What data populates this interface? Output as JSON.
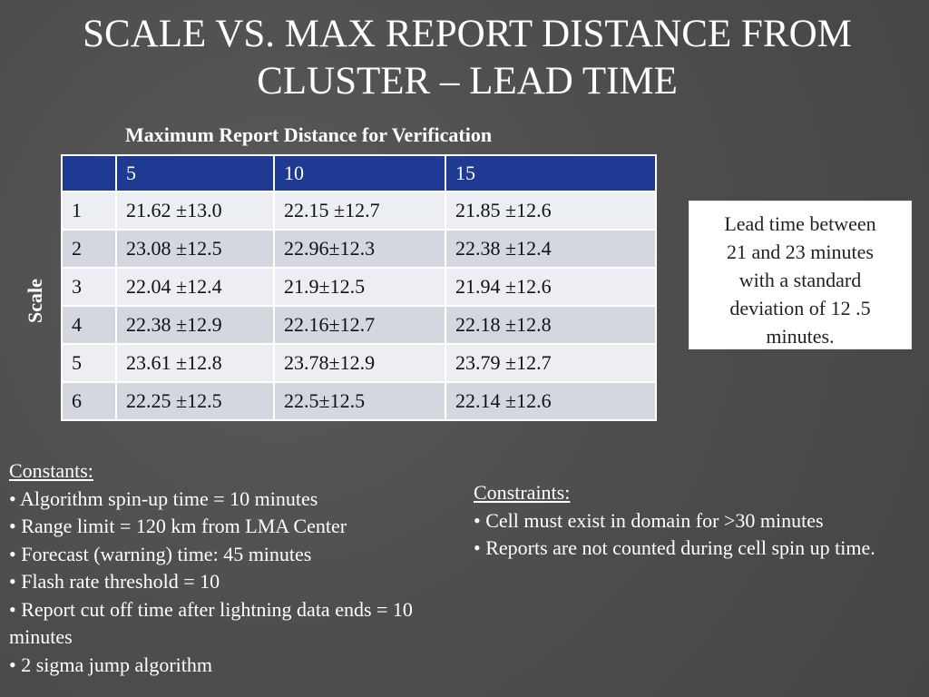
{
  "title": "SCALE VS. MAX REPORT DISTANCE FROM CLUSTER – LEAD TIME",
  "table": {
    "caption": "Maximum Report Distance for Verification",
    "row_axis_label": "Scale",
    "headers": [
      "",
      "5",
      "10",
      "15"
    ],
    "rows": [
      [
        "1",
        "21.62 ±13.0",
        "22.15 ±12.7",
        "21.85 ±12.6"
      ],
      [
        "2",
        "23.08 ±12.5",
        "22.96±12.3",
        "22.38 ±12.4"
      ],
      [
        "3",
        "22.04 ±12.4",
        "21.9±12.5",
        "21.94 ±12.6"
      ],
      [
        "4",
        "22.38 ±12.9",
        "22.16±12.7",
        "22.18 ±12.8"
      ],
      [
        "5",
        "23.61 ±12.8",
        "23.78±12.9",
        "23.79 ±12.7"
      ],
      [
        "6",
        "22.25 ±12.5",
        "22.5±12.5",
        "22.14 ±12.6"
      ]
    ]
  },
  "note": {
    "lines": [
      "Lead time between",
      "21 and 23 minutes",
      "with a standard",
      "deviation of 12 .5",
      "minutes."
    ]
  },
  "constants": {
    "heading": "Constants:",
    "items": [
      "• Algorithm spin-up time = 10 minutes",
      "• Range limit = 120 km from LMA Center",
      "• Forecast (warning) time: 45 minutes",
      "• Flash rate threshold = 10",
      "• Report cut off time after lightning data ends = 10 minutes",
      "• 2 sigma jump algorithm"
    ]
  },
  "constraints": {
    "heading": "Constraints:",
    "items": [
      "•  Cell must exist in domain for >30 minutes",
      "• Reports are not counted during cell spin up time."
    ]
  }
}
